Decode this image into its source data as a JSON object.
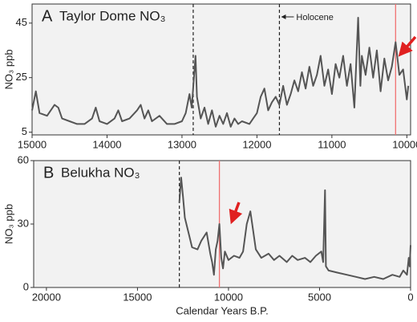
{
  "chart_data": [
    {
      "type": "line",
      "panel": "A",
      "title": "Taylor Dome NO₃",
      "y_label": "NO₃ ppb",
      "color": "#555555",
      "xlim": [
        15000,
        9950
      ],
      "xticks": [
        15000,
        14000,
        13000,
        12000,
        11000,
        10000
      ],
      "ylim": [
        4,
        52
      ],
      "yticks": [
        5,
        25,
        45
      ],
      "dashed_lines": [
        12850,
        11700
      ],
      "red_lines": [
        10150
      ],
      "annotation": "Holocene",
      "x": [
        15000,
        14950,
        14900,
        14800,
        14700,
        14650,
        14600,
        14500,
        14400,
        14300,
        14200,
        14150,
        14100,
        14000,
        13900,
        13850,
        13800,
        13700,
        13600,
        13550,
        13500,
        13450,
        13400,
        13300,
        13200,
        13100,
        13000,
        12950,
        12900,
        12870,
        12820,
        12800,
        12750,
        12700,
        12650,
        12600,
        12550,
        12500,
        12450,
        12400,
        12350,
        12300,
        12250,
        12200,
        12100,
        12050,
        12000,
        11950,
        11900,
        11850,
        11800,
        11750,
        11700,
        11650,
        11600,
        11550,
        11500,
        11450,
        11400,
        11350,
        11300,
        11250,
        11200,
        11150,
        11100,
        11050,
        11000,
        10950,
        10900,
        10850,
        10800,
        10750,
        10700,
        10650,
        10620,
        10600,
        10550,
        10500,
        10450,
        10400,
        10350,
        10300,
        10250,
        10200,
        10150,
        10100,
        10050,
        10000,
        9980
      ],
      "values": [
        13,
        20,
        12,
        11,
        15,
        14,
        10,
        9,
        8,
        8,
        10,
        14,
        9,
        8,
        10,
        13,
        9,
        10,
        13,
        15,
        10,
        13,
        9,
        11,
        8,
        8,
        9,
        12,
        19,
        14,
        33,
        18,
        10,
        14,
        8,
        13,
        7,
        11,
        8,
        12,
        7,
        10,
        8,
        9,
        8,
        10,
        12,
        18,
        21,
        13,
        16,
        18,
        15,
        22,
        15,
        19,
        24,
        20,
        27,
        21,
        29,
        22,
        26,
        33,
        22,
        28,
        19,
        30,
        25,
        33,
        22,
        30,
        14,
        47,
        22,
        33,
        26,
        36,
        25,
        35,
        20,
        32,
        24,
        29,
        38,
        26,
        28,
        17,
        22
      ]
    },
    {
      "type": "line",
      "panel": "B",
      "title": "Belukha NO₃",
      "y_label": "NO₃ ppb",
      "x_label": "Calendar Years B.P.",
      "color": "#555555",
      "xlim": [
        20700,
        0
      ],
      "xticks": [
        20000,
        15000,
        10000,
        5000,
        0
      ],
      "ylim": [
        0,
        60
      ],
      "yticks": [
        0,
        30,
        60
      ],
      "dashed_lines": [
        12700
      ],
      "red_lines": [
        10500
      ],
      "x": [
        12700,
        12600,
        12500,
        12400,
        12200,
        12000,
        11700,
        11500,
        11200,
        11000,
        10900,
        10800,
        10700,
        10600,
        10500,
        10400,
        10300,
        10200,
        10000,
        9700,
        9400,
        9200,
        9000,
        8800,
        8700,
        8500,
        8200,
        7800,
        7500,
        7200,
        6800,
        6500,
        6200,
        5800,
        5500,
        5200,
        4900,
        4800,
        4700,
        4650,
        4500,
        4000,
        3500,
        3000,
        2500,
        2000,
        1500,
        1000,
        600,
        400,
        200,
        100,
        50,
        0
      ],
      "values": [
        40,
        52,
        43,
        33,
        26,
        19,
        18,
        22,
        26,
        16,
        12,
        6,
        18,
        22,
        30,
        14,
        9,
        17,
        13,
        15,
        14,
        17,
        30,
        36,
        30,
        18,
        14,
        16,
        13,
        15,
        12,
        15,
        13,
        14,
        12,
        15,
        17,
        12,
        46,
        10,
        8,
        7,
        6,
        5,
        4,
        5,
        4,
        6,
        5,
        8,
        6,
        14,
        10,
        20
      ]
    }
  ]
}
